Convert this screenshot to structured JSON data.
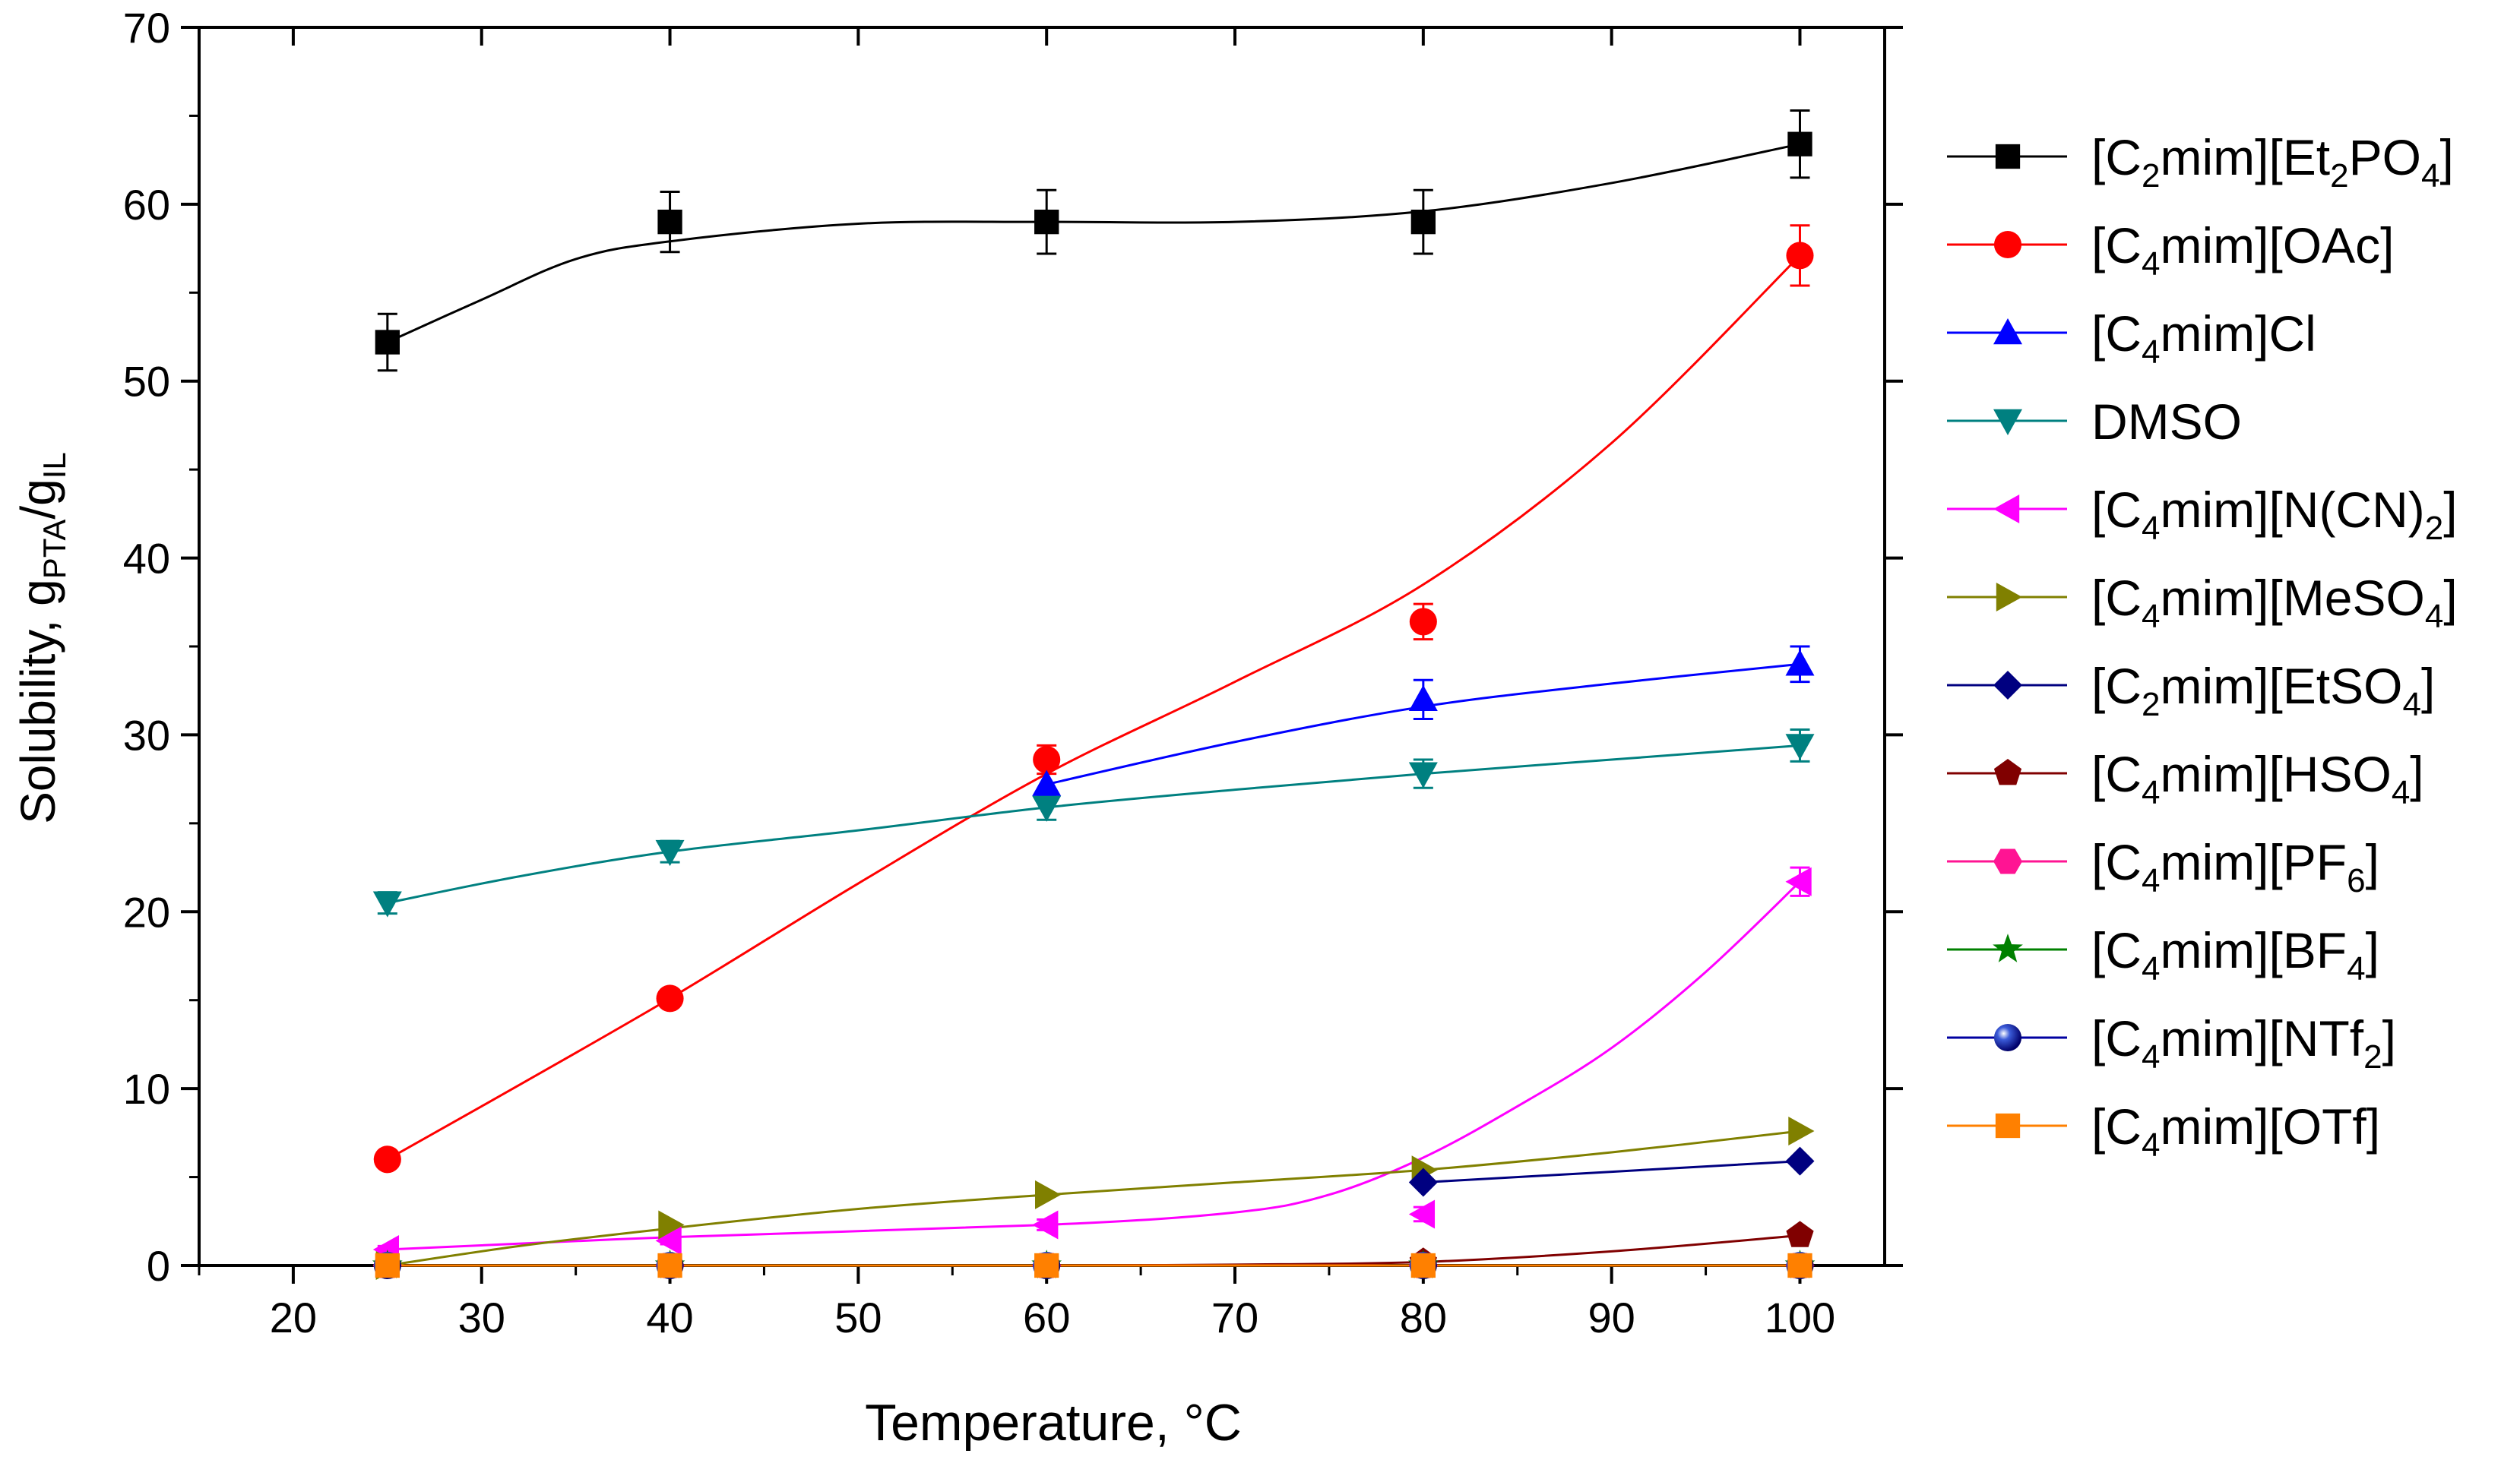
{
  "chart_data": {
    "type": "scatter",
    "title": "",
    "xlabel": "Temperature, ",
    "xlabel_unit": "°C",
    "ylabel": "Solubility, g",
    "ylabel_sub1": "PTA",
    "ylabel_sep": "/g",
    "ylabel_sub2": "IL",
    "xlim": [
      15,
      104.5
    ],
    "ylim": [
      0,
      70
    ],
    "xticks": [
      20,
      30,
      40,
      50,
      60,
      70,
      80,
      90,
      100
    ],
    "yticks": [
      0,
      10,
      20,
      30,
      40,
      50,
      60,
      70
    ],
    "legend_position": "right",
    "series": [
      {
        "name": "[C2mim][Et2PO4]",
        "label_parts": [
          [
            "[C",
            ""
          ],
          [
            "2",
            "sub"
          ],
          [
            "mim][Et",
            ""
          ],
          [
            "2",
            "sub"
          ],
          [
            "PO",
            ""
          ],
          [
            "4",
            "sub"
          ],
          [
            "]",
            ""
          ]
        ],
        "color": "#000000",
        "marker": "square",
        "x": [
          25,
          40,
          60,
          80,
          100
        ],
        "y": [
          52.2,
          59.0,
          59.0,
          59.0,
          63.4
        ],
        "err": [
          1.6,
          1.7,
          1.8,
          1.8,
          1.9
        ],
        "curve": [
          [
            25,
            52.2
          ],
          [
            30,
            54.6
          ],
          [
            35,
            56.9
          ],
          [
            40,
            57.9
          ],
          [
            50,
            58.9
          ],
          [
            60,
            59.0
          ],
          [
            70,
            59.0
          ],
          [
            80,
            59.6
          ],
          [
            90,
            61.2
          ],
          [
            100,
            63.4
          ]
        ]
      },
      {
        "name": "[C4mim][OAc]",
        "label_parts": [
          [
            "[C",
            ""
          ],
          [
            "4",
            "sub"
          ],
          [
            "mim][OAc]",
            ""
          ]
        ],
        "color": "#ff0000",
        "marker": "circle",
        "x": [
          25,
          40,
          60,
          80,
          100
        ],
        "y": [
          6.0,
          15.1,
          28.6,
          36.4,
          57.1
        ],
        "err": [
          0.4,
          0.4,
          0.8,
          1.0,
          1.7
        ],
        "curve": [
          [
            25,
            6.0
          ],
          [
            30,
            9.0
          ],
          [
            40,
            15.1
          ],
          [
            50,
            21.6
          ],
          [
            60,
            27.8
          ],
          [
            70,
            33.0
          ],
          [
            80,
            38.5
          ],
          [
            90,
            46.5
          ],
          [
            100,
            57.1
          ]
        ]
      },
      {
        "name": "[C4mim]Cl",
        "label_parts": [
          [
            "[C",
            ""
          ],
          [
            "4",
            "sub"
          ],
          [
            "mim]Cl",
            ""
          ]
        ],
        "color": "#0000ff",
        "marker": "triangle-up",
        "x": [
          60,
          80,
          100
        ],
        "y": [
          27.2,
          32.0,
          34.0
        ],
        "err": [
          1.0,
          1.1,
          1.0
        ],
        "curve": [
          [
            60,
            27.2
          ],
          [
            70,
            29.6
          ],
          [
            80,
            31.6
          ],
          [
            90,
            32.9
          ],
          [
            100,
            34.0
          ]
        ]
      },
      {
        "name": "DMSO",
        "label_parts": [
          [
            "DMSO",
            ""
          ]
        ],
        "color": "#008080",
        "marker": "triangle-down",
        "x": [
          25,
          40,
          60,
          80,
          100
        ],
        "y": [
          20.5,
          23.4,
          25.9,
          27.8,
          29.4
        ],
        "err": [
          0.6,
          0.6,
          0.7,
          0.8,
          0.9
        ],
        "curve": [
          [
            25,
            20.5
          ],
          [
            32,
            22.0
          ],
          [
            40,
            23.4
          ],
          [
            50,
            24.6
          ],
          [
            60,
            25.9
          ],
          [
            70,
            26.9
          ],
          [
            80,
            27.8
          ],
          [
            90,
            28.6
          ],
          [
            100,
            29.4
          ]
        ]
      },
      {
        "name": "[C4mim][N(CN)2]",
        "label_parts": [
          [
            "[C",
            ""
          ],
          [
            "4",
            "sub"
          ],
          [
            "mim][N(CN)",
            ""
          ],
          [
            "2",
            "sub"
          ],
          [
            "]",
            ""
          ]
        ],
        "color": "#ff00ff",
        "marker": "triangle-left",
        "x": [
          25,
          40,
          60,
          80,
          100
        ],
        "y": [
          0.9,
          1.4,
          2.3,
          2.9,
          21.7
        ],
        "err": [
          0.2,
          0.2,
          0.3,
          0.4,
          0.8
        ],
        "curve": [
          [
            25,
            0.9
          ],
          [
            40,
            1.6
          ],
          [
            60,
            2.3
          ],
          [
            70,
            3.0
          ],
          [
            75,
            4.0
          ],
          [
            80,
            6.1
          ],
          [
            85,
            9.0
          ],
          [
            90,
            12.3
          ],
          [
            95,
            16.6
          ],
          [
            100,
            21.7
          ]
        ]
      },
      {
        "name": "[C4mim][MeSO4]",
        "label_parts": [
          [
            "[C",
            ""
          ],
          [
            "4",
            "sub"
          ],
          [
            "mim][MeSO",
            ""
          ],
          [
            "4",
            "sub"
          ],
          [
            "]",
            ""
          ]
        ],
        "color": "#808000",
        "marker": "triangle-right",
        "x": [
          25,
          40,
          60,
          80,
          100
        ],
        "y": [
          0.0,
          2.3,
          4.0,
          5.4,
          7.6
        ],
        "err": [
          0,
          0,
          0,
          0,
          0
        ],
        "curve": [
          [
            25,
            0.0
          ],
          [
            32,
            1.1
          ],
          [
            40,
            2.1
          ],
          [
            50,
            3.2
          ],
          [
            60,
            4.0
          ],
          [
            70,
            4.7
          ],
          [
            80,
            5.4
          ],
          [
            90,
            6.4
          ],
          [
            100,
            7.6
          ]
        ]
      },
      {
        "name": "[C2mim][EtSO4]",
        "label_parts": [
          [
            "[C",
            ""
          ],
          [
            "2",
            "sub"
          ],
          [
            "mim][EtSO",
            ""
          ],
          [
            "4",
            "sub"
          ],
          [
            "]",
            ""
          ]
        ],
        "color": "#000080",
        "marker": "diamond",
        "x": [
          80,
          100
        ],
        "y": [
          4.7,
          5.9
        ],
        "err": [
          0,
          0
        ],
        "curve": [
          [
            80,
            4.7
          ],
          [
            90,
            5.3
          ],
          [
            100,
            5.9
          ]
        ]
      },
      {
        "name": "[C4mim][HSO4]",
        "label_parts": [
          [
            "[C",
            ""
          ],
          [
            "4",
            "sub"
          ],
          [
            "mim][HSO",
            ""
          ],
          [
            "4",
            "sub"
          ],
          [
            "]",
            ""
          ]
        ],
        "color": "#800000",
        "marker": "pentagon",
        "x": [
          80,
          100
        ],
        "y": [
          0.2,
          1.7
        ],
        "err": [
          0,
          0
        ],
        "curve": [
          [
            60,
            0.0
          ],
          [
            70,
            0.05
          ],
          [
            80,
            0.2
          ],
          [
            90,
            0.8
          ],
          [
            100,
            1.7
          ]
        ]
      },
      {
        "name": "[C4mim][PF6]",
        "label_parts": [
          [
            "[C",
            ""
          ],
          [
            "4",
            "sub"
          ],
          [
            "mim][PF",
            ""
          ],
          [
            "6",
            "sub"
          ],
          [
            "]",
            ""
          ]
        ],
        "color": "#ff1493",
        "marker": "hexagon",
        "x": [
          25,
          40,
          60,
          80,
          100
        ],
        "y": [
          0.0,
          0.0,
          0.0,
          0.0,
          0.0
        ],
        "err": [
          0,
          0,
          0,
          0,
          0
        ],
        "curve": [
          [
            25,
            0.0
          ],
          [
            100,
            0.0
          ]
        ]
      },
      {
        "name": "[C4mim][BF4]",
        "label_parts": [
          [
            "[C",
            ""
          ],
          [
            "4",
            "sub"
          ],
          [
            "mim][BF",
            ""
          ],
          [
            "4",
            "sub"
          ],
          [
            "]",
            ""
          ]
        ],
        "color": "#008000",
        "marker": "star",
        "x": [
          25,
          40,
          60,
          80,
          100
        ],
        "y": [
          0.0,
          0.0,
          0.0,
          0.0,
          0.0
        ],
        "err": [
          0,
          0,
          0,
          0,
          0
        ],
        "curve": [
          [
            25,
            0.0
          ],
          [
            100,
            0.0
          ]
        ]
      },
      {
        "name": "[C4mim][NTf2]",
        "label_parts": [
          [
            "[C",
            ""
          ],
          [
            "4",
            "sub"
          ],
          [
            "mim][NTf",
            ""
          ],
          [
            "2",
            "sub"
          ],
          [
            "]",
            ""
          ]
        ],
        "color": "#0000a0",
        "marker": "sphere",
        "x": [
          25,
          40,
          60,
          80,
          100
        ],
        "y": [
          0.0,
          0.0,
          0.0,
          0.0,
          0.0
        ],
        "err": [
          0,
          0,
          0,
          0,
          0
        ],
        "curve": [
          [
            25,
            0.0
          ],
          [
            100,
            0.0
          ]
        ]
      },
      {
        "name": "[C4mim][OTf]",
        "label_parts": [
          [
            "[C",
            ""
          ],
          [
            "4",
            "sub"
          ],
          [
            "mim][OTf]",
            ""
          ]
        ],
        "color": "#ff8000",
        "marker": "square",
        "x": [
          25,
          40,
          60,
          80,
          100
        ],
        "y": [
          0.0,
          0.0,
          0.0,
          0.0,
          0.0
        ],
        "err": [
          0,
          0,
          0,
          0,
          0
        ],
        "curve": [
          [
            25,
            0.0
          ],
          [
            100,
            0.0
          ]
        ]
      }
    ]
  }
}
